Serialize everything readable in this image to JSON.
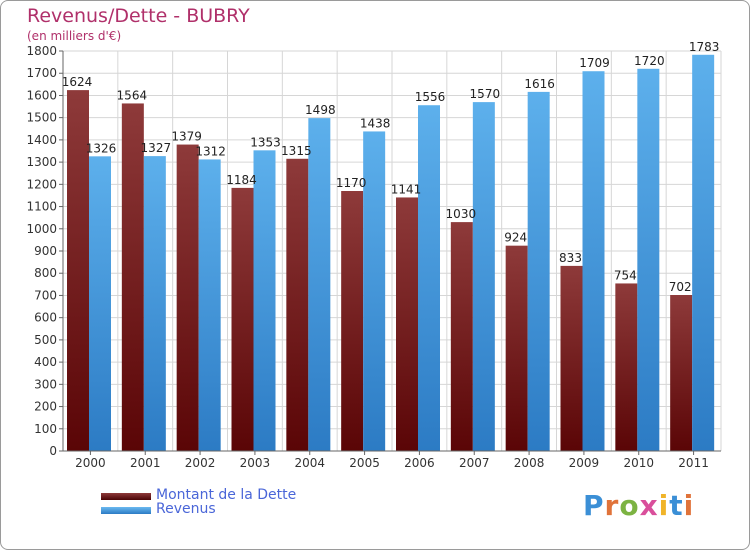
{
  "title": "Revenus/Dette - BUBRY",
  "subtitle": "(en milliers d'€)",
  "legend": [
    {
      "label": "Montant de la Dette",
      "color": "#6e0f10"
    },
    {
      "label": "Revenus",
      "color": "#3f97da"
    }
  ],
  "logo_text": "Proxiti",
  "chart_data": {
    "type": "bar",
    "categories": [
      "2000",
      "2001",
      "2002",
      "2003",
      "2004",
      "2005",
      "2006",
      "2007",
      "2008",
      "2009",
      "2010",
      "2011"
    ],
    "series": [
      {
        "name": "Montant de la Dette",
        "values": [
          1624,
          1564,
          1379,
          1184,
          1315,
          1170,
          1141,
          1030,
          924,
          833,
          754,
          702
        ]
      },
      {
        "name": "Revenus",
        "values": [
          1326,
          1327,
          1312,
          1353,
          1498,
          1438,
          1556,
          1570,
          1616,
          1709,
          1720,
          1783
        ]
      }
    ],
    "ylim": [
      0,
      1800
    ],
    "yticks": [
      0,
      100,
      200,
      300,
      400,
      500,
      600,
      700,
      800,
      900,
      1000,
      1100,
      1200,
      1300,
      1400,
      1500,
      1600,
      1700,
      1800
    ],
    "grid": true,
    "legend_position": "bottom-left",
    "colors": {
      "dette_dark": "#5a0506",
      "dette_light": "#8e3a3a",
      "revenus_dark": "#2c7bc4",
      "revenus_light": "#5db0ec",
      "title": "#b0306a",
      "legend_text": "#4a66d8"
    }
  }
}
